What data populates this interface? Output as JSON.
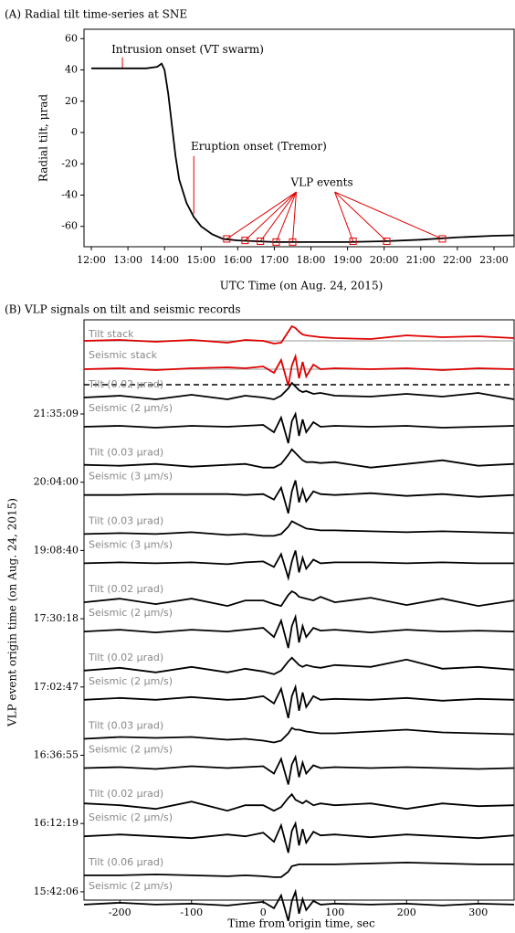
{
  "chart_data": [
    {
      "type": "line",
      "title": "(A) Radial tilt time-series at SNE",
      "xlabel": "UTC Time (on Aug. 24, 2015)",
      "ylabel": "Radial tilt, μrad",
      "x": [
        12,
        12.5,
        13,
        13.5,
        13.8,
        13.92,
        14.0,
        14.1,
        14.2,
        14.3,
        14.4,
        14.6,
        14.8,
        15.0,
        15.3,
        15.6,
        16,
        17,
        18,
        19,
        20,
        21,
        22,
        23,
        23.55
      ],
      "series": [
        {
          "color": "#000000",
          "values": [
            41,
            41,
            41,
            41,
            42,
            44,
            40,
            25,
            5,
            -15,
            -30,
            -45,
            -54,
            -60,
            -65,
            -68,
            -69,
            -70,
            -70,
            -70,
            -69.5,
            -68.5,
            -67,
            -66,
            -65.7
          ]
        }
      ],
      "events": {
        "color": "#e00000",
        "x": [
          15.7,
          16.2,
          16.62,
          17.05,
          17.5,
          19.15,
          20.07,
          21.59
        ],
        "values": [
          -68,
          -69,
          -69.5,
          -70,
          -70,
          -69.5,
          -69.5,
          -68
        ]
      },
      "annotations": [
        "Intrusion onset (VT swarm)",
        "Eruption onset (Tremor)",
        "VLP events"
      ],
      "xlim": [
        11.8,
        23.55
      ],
      "ylim": [
        -73,
        66
      ],
      "xticks": [
        {
          "value": 12,
          "label": "12:00"
        },
        {
          "value": 13,
          "label": "13:00"
        },
        {
          "value": 14,
          "label": "14:00"
        },
        {
          "value": 15,
          "label": "15:00"
        },
        {
          "value": 16,
          "label": "16:00"
        },
        {
          "value": 17,
          "label": "17:00"
        },
        {
          "value": 18,
          "label": "18:00"
        },
        {
          "value": 19,
          "label": "19:00"
        },
        {
          "value": 20,
          "label": "20:00"
        },
        {
          "value": 21,
          "label": "21:00"
        },
        {
          "value": 22,
          "label": "22:00"
        },
        {
          "value": 23,
          "label": "23:00"
        }
      ],
      "yticks": [
        -60,
        -40,
        -20,
        0,
        20,
        40,
        60
      ]
    },
    {
      "type": "waveform",
      "title": "(B) VLP signals on tilt and seismic records",
      "xlabel": "Time from origin time, sec",
      "ylabel": "VLP event origin time (on Aug. 24, 2015)",
      "categories": [
        "21:35:09",
        "20:04:00",
        "19:08:40",
        "17:30:18",
        "17:02:47",
        "16:36:55",
        "16:12:19",
        "15:42:06"
      ],
      "x": [
        -250,
        -200,
        -150,
        -100,
        -50,
        -25,
        0,
        15,
        25,
        35,
        40,
        45,
        50,
        55,
        60,
        70,
        80,
        100,
        150,
        200,
        250,
        300,
        350
      ],
      "series": [
        {
          "name": "Tilt stack",
          "color": "#e00000",
          "values": [
            0,
            0.05,
            -0.05,
            0.05,
            -0.1,
            0.05,
            0,
            -0.15,
            -0.1,
            0.5,
            0.8,
            0.7,
            0.5,
            0.35,
            0.3,
            0.25,
            0.2,
            0.15,
            0.1,
            0.3,
            0.2,
            0.25,
            0.15
          ]
        },
        {
          "name": "Seismic stack",
          "color": "#e00000",
          "values": [
            0,
            0.05,
            -0.05,
            0.05,
            0.1,
            0.05,
            0.15,
            -0.2,
            0.5,
            -0.9,
            0.2,
            0.7,
            -0.5,
            0.4,
            -0.4,
            0.25,
            0,
            0.05,
            0,
            0.05,
            -0.05,
            0.05,
            0
          ]
        },
        {
          "name": "Tilt (0.02 μrad)",
          "color": "#000000",
          "values": [
            0,
            0.1,
            -0.1,
            0.15,
            -0.1,
            0.1,
            0,
            -0.1,
            0.1,
            0.5,
            0.8,
            0.6,
            0.4,
            0.3,
            0.35,
            0.2,
            0.25,
            0.1,
            0.05,
            0.2,
            0.05,
            0.25,
            -0.1
          ]
        },
        {
          "name": "Seismic (2 μm/s)",
          "color": "#000000",
          "values": [
            0,
            0.05,
            -0.05,
            0.05,
            0,
            0.05,
            0.1,
            -0.3,
            0.5,
            -0.9,
            0.3,
            0.7,
            -0.5,
            0.4,
            -0.3,
            0.25,
            0,
            0.05,
            0,
            0.05,
            -0.05,
            0,
            0.05
          ]
        },
        {
          "name": "Tilt (0.03 μrad)",
          "color": "#000000",
          "values": [
            0.05,
            0,
            0.1,
            -0.05,
            0.05,
            0.1,
            -0.1,
            -0.1,
            0.1,
            0.6,
            0.9,
            0.7,
            0.5,
            0.3,
            0.2,
            0.2,
            0.15,
            0.2,
            -0.1,
            0.1,
            0.3,
            0,
            0.1
          ]
        },
        {
          "name": "Seismic (3 μm/s)",
          "color": "#000000",
          "values": [
            0,
            0,
            0.05,
            0.05,
            0.05,
            0,
            0.05,
            -0.25,
            0.4,
            -1,
            0.2,
            0.8,
            -0.4,
            0.3,
            -0.35,
            0.2,
            0.05,
            0,
            0.1,
            -0.05,
            0.05,
            -0.1,
            0
          ]
        },
        {
          "name": "Tilt (0.03 μrad)",
          "color": "#000000",
          "values": [
            0,
            0.05,
            0,
            0.1,
            -0.05,
            0,
            -0.1,
            -0.1,
            0,
            0.4,
            0.7,
            0.6,
            0.5,
            0.4,
            0.3,
            0.25,
            0.2,
            0.2,
            0.15,
            0.1,
            0.15,
            0.1,
            0.05
          ]
        },
        {
          "name": "Seismic (3 μm/s)",
          "color": "#000000",
          "values": [
            0,
            0.05,
            0,
            0.05,
            -0.05,
            0.05,
            0.1,
            -0.2,
            0.5,
            -0.8,
            0.1,
            0.7,
            -0.5,
            0.3,
            -0.3,
            0.2,
            0,
            0.05,
            0.05,
            0,
            0.05,
            0,
            0
          ]
        },
        {
          "name": "Tilt (0.02 μrad)",
          "color": "#000000",
          "values": [
            0,
            0.2,
            -0.1,
            0.2,
            -0.2,
            0.1,
            0.1,
            -0.1,
            -0.2,
            0.4,
            0.6,
            0.5,
            0.3,
            0.25,
            0.2,
            0.1,
            0.3,
            0.0,
            0.25,
            -0.15,
            0.2,
            -0.2,
            0.1
          ]
        },
        {
          "name": "Seismic (2 μm/s)",
          "color": "#000000",
          "values": [
            0,
            0.1,
            -0.05,
            0.1,
            0,
            0.1,
            0.2,
            -0.3,
            0.6,
            -0.9,
            0.3,
            0.8,
            -0.6,
            0.3,
            -0.3,
            0.2,
            0.05,
            0.1,
            -0.05,
            0.1,
            0,
            0.05,
            0
          ]
        },
        {
          "name": "Tilt (0.02 μrad)",
          "color": "#000000",
          "values": [
            0,
            0.15,
            -0.1,
            0.2,
            -0.1,
            0.1,
            -0.05,
            -0.2,
            0,
            0.5,
            0.7,
            0.5,
            0.3,
            0.2,
            0.3,
            0.2,
            0.15,
            0.3,
            0.2,
            0.6,
            0.1,
            0.2,
            0.05
          ]
        },
        {
          "name": "Seismic (2 μm/s)",
          "color": "#000000",
          "values": [
            0,
            0.1,
            0,
            0.15,
            0,
            0.05,
            0.2,
            -0.2,
            0.6,
            -1,
            0.2,
            0.7,
            -0.6,
            0.4,
            -0.4,
            0.2,
            0,
            0.05,
            0,
            0.1,
            -0.05,
            0.05,
            0
          ]
        },
        {
          "name": "Tilt (0.03 μrad)",
          "color": "#000000",
          "values": [
            0,
            0.1,
            0.05,
            0.1,
            -0.05,
            0,
            -0.1,
            -0.2,
            -0.1,
            0.3,
            0.6,
            0.5,
            0.5,
            0.45,
            0.4,
            0.35,
            0.3,
            0.3,
            0.4,
            0.5,
            0.35,
            0.3,
            0.25
          ]
        },
        {
          "name": "Seismic (2 μm/s)",
          "color": "#000000",
          "values": [
            0,
            0.05,
            -0.05,
            0.1,
            0,
            0.05,
            0.1,
            -0.3,
            0.5,
            -0.9,
            0.2,
            0.6,
            -0.5,
            0.3,
            -0.3,
            0.15,
            0,
            0.05,
            0,
            0.05,
            0,
            -0.05,
            0
          ]
        },
        {
          "name": "Tilt (0.02 μrad)",
          "color": "#000000",
          "values": [
            0.2,
            0.1,
            -0.1,
            0.3,
            -0.2,
            0.1,
            0.1,
            -0.2,
            0,
            0.5,
            0.7,
            0.4,
            0.3,
            0.2,
            0.35,
            0.1,
            0.2,
            0.1,
            0.2,
            -0.1,
            0.2,
            0.05,
            0.1
          ]
        },
        {
          "name": "Seismic (2 μm/s)",
          "color": "#000000",
          "values": [
            0,
            0.1,
            0,
            -0.1,
            0.1,
            0,
            0.2,
            -0.3,
            0.6,
            -0.9,
            0.3,
            0.7,
            -0.5,
            0.4,
            -0.35,
            0.25,
            0.05,
            0.1,
            -0.05,
            0.1,
            0,
            -0.1,
            0.05
          ]
        },
        {
          "name": "Tilt (0.06 μrad)",
          "color": "#000000",
          "values": [
            0,
            0,
            0.05,
            0,
            -0.05,
            0,
            -0.05,
            -0.1,
            -0.1,
            0.2,
            0.5,
            0.55,
            0.6,
            0.6,
            0.6,
            0.6,
            0.6,
            0.6,
            0.65,
            0.7,
            0.65,
            0.6,
            0.6
          ]
        },
        {
          "name": "Seismic (2 μm/s)",
          "color": "#000000",
          "values": [
            0,
            0.1,
            0,
            0.05,
            -0.05,
            0.05,
            0.15,
            -0.2,
            0.5,
            -0.9,
            0.2,
            0.7,
            -0.5,
            0.3,
            -0.3,
            0.2,
            0,
            0.05,
            0,
            0.05,
            -0.05,
            0.05,
            0
          ]
        }
      ],
      "xlim": [
        -250,
        350
      ],
      "xticks": [
        -200,
        -100,
        0,
        100,
        200,
        300
      ]
    }
  ]
}
